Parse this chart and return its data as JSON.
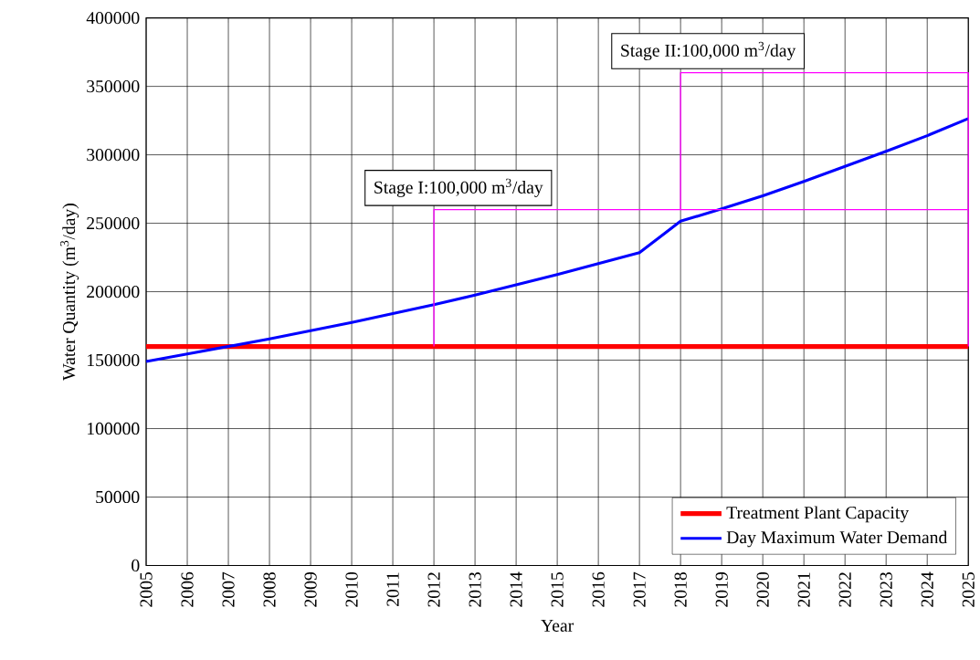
{
  "chart_data": {
    "type": "line",
    "xlabel": "Year",
    "ylabel": "Water Quantity (m$^{3}$/day)",
    "x": [
      2005,
      2006,
      2007,
      2008,
      2009,
      2010,
      2011,
      2012,
      2013,
      2014,
      2015,
      2016,
      2017,
      2018,
      2019,
      2020,
      2021,
      2022,
      2023,
      2024,
      2025
    ],
    "series": [
      {
        "name": "Treatment Plant Capacity",
        "color": "#ff0000",
        "values": [
          160000,
          160000,
          160000,
          160000,
          160000,
          160000,
          160000,
          160000,
          160000,
          160000,
          160000,
          160000,
          160000,
          160000,
          160000,
          160000,
          160000,
          160000,
          160000,
          160000,
          160000
        ]
      },
      {
        "name": "Day Maximum Water Demand",
        "color": "#0000ff",
        "values": [
          149000,
          154500,
          160000,
          165500,
          171500,
          177500,
          184000,
          190500,
          197500,
          205000,
          212500,
          220500,
          228500,
          251500,
          260500,
          270000,
          280500,
          291500,
          302500,
          314000,
          326500
        ]
      },
      {
        "color": "#ff00ff",
        "x": [
          2012,
          2012,
          2025,
          2025
        ],
        "values": [
          160000,
          260000,
          260000,
          160000
        ]
      },
      {
        "color": "#ff00ff",
        "x": [
          2018,
          2018,
          2025,
          2025
        ],
        "values": [
          260000,
          360000,
          360000,
          260000
        ]
      }
    ],
    "annotations": [
      "Stage I:100,000 m$^{3}$/day",
      "Stage II:100,000 m$^{3}$/day"
    ],
    "xlim": [
      2005,
      2025
    ],
    "ylim": [
      0,
      400000
    ],
    "xticks": [
      2005,
      2006,
      2007,
      2008,
      2009,
      2010,
      2011,
      2012,
      2013,
      2014,
      2015,
      2016,
      2017,
      2018,
      2019,
      2020,
      2021,
      2022,
      2023,
      2024,
      2025
    ],
    "yticks": [
      0,
      50000,
      100000,
      150000,
      200000,
      250000,
      300000,
      350000,
      400000
    ],
    "grid": true,
    "legend": "bottom right"
  }
}
